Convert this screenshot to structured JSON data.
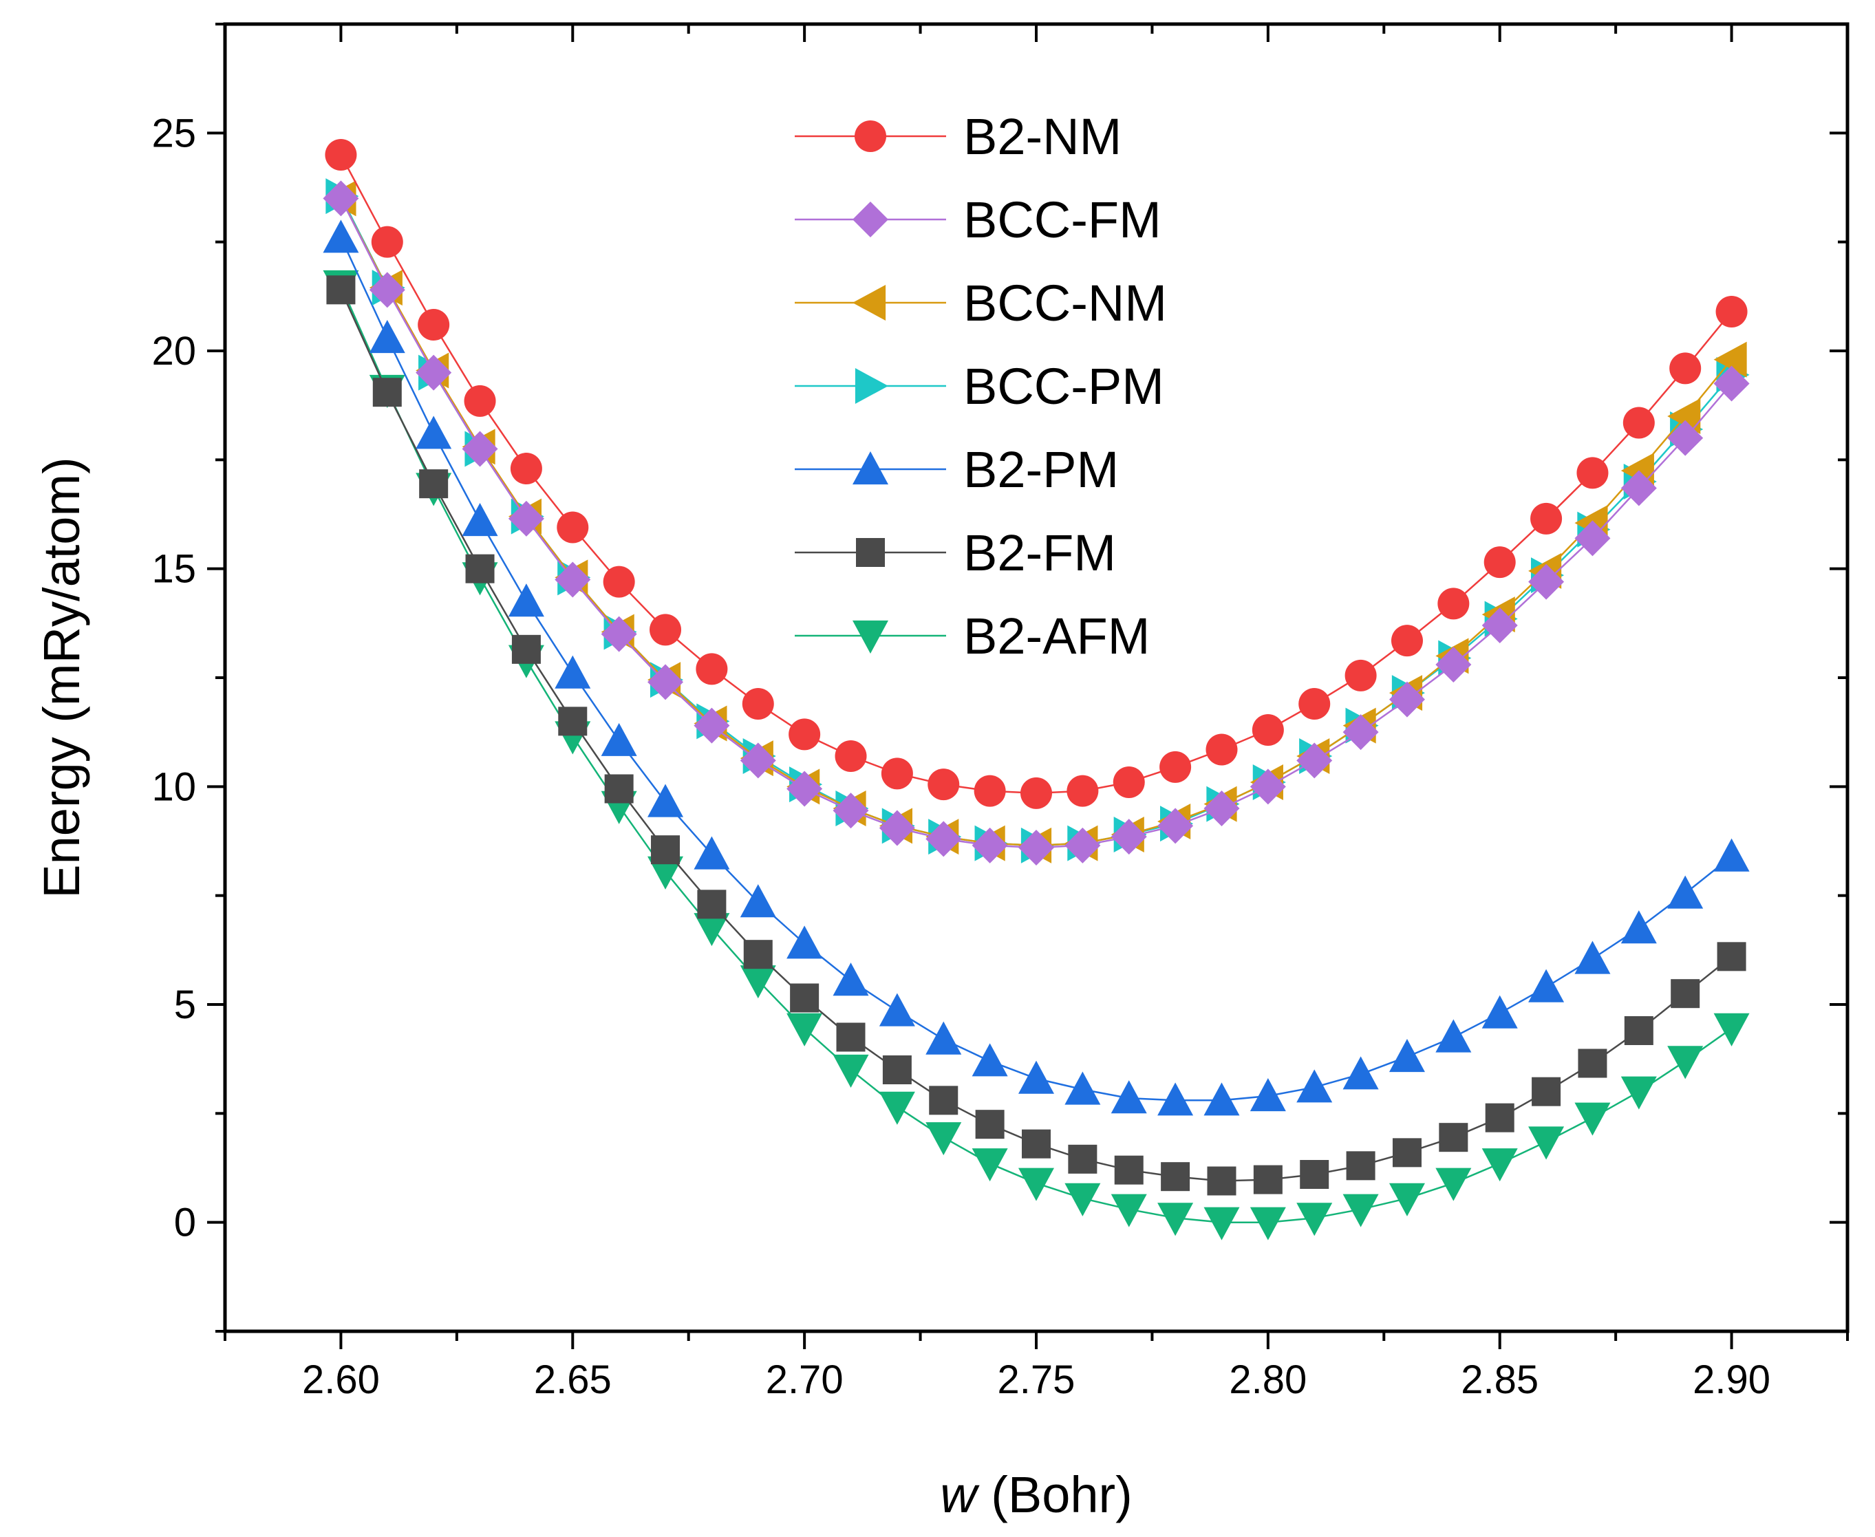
{
  "chart_data": {
    "type": "line",
    "xlabel": {
      "italic": "w",
      "rest": " (Bohr)"
    },
    "ylabel": "Energy (mRy/atom)",
    "xlim": [
      2.575,
      2.925
    ],
    "ylim": [
      -2.5,
      27.5
    ],
    "xticks": [
      "2.60",
      "2.65",
      "2.70",
      "2.75",
      "2.80",
      "2.85",
      "2.90"
    ],
    "yticks": [
      "0",
      "5",
      "10",
      "15",
      "20",
      "25"
    ],
    "grid": false,
    "legend_position": "top-center",
    "x": [
      2.6,
      2.61,
      2.62,
      2.63,
      2.64,
      2.65,
      2.66,
      2.67,
      2.68,
      2.69,
      2.7,
      2.71,
      2.72,
      2.73,
      2.74,
      2.75,
      2.76,
      2.77,
      2.78,
      2.79,
      2.8,
      2.81,
      2.82,
      2.83,
      2.84,
      2.85,
      2.86,
      2.87,
      2.88,
      2.89,
      2.9
    ],
    "series": [
      {
        "name": "B2-NM",
        "color": "#f03c3c",
        "marker": "circle",
        "values": [
          24.5,
          22.5,
          20.6,
          18.85,
          17.3,
          15.95,
          14.7,
          13.6,
          12.7,
          11.9,
          11.2,
          10.7,
          10.3,
          10.05,
          9.9,
          9.85,
          9.9,
          10.1,
          10.45,
          10.85,
          11.3,
          11.9,
          12.55,
          13.35,
          14.2,
          15.15,
          16.15,
          17.2,
          18.35,
          19.6,
          20.9
        ]
      },
      {
        "name": "BCC-FM",
        "color": "#b070d8",
        "marker": "diamond",
        "values": [
          23.5,
          21.4,
          19.5,
          17.75,
          16.15,
          14.75,
          13.5,
          12.4,
          11.4,
          10.6,
          9.95,
          9.45,
          9.05,
          8.8,
          8.65,
          8.6,
          8.65,
          8.85,
          9.1,
          9.5,
          10.0,
          10.6,
          11.25,
          12.0,
          12.8,
          13.7,
          14.7,
          15.7,
          16.85,
          18.0,
          19.25
        ]
      },
      {
        "name": "BCC-NM",
        "color": "#d89a10",
        "marker": "triangle-left",
        "values": [
          23.5,
          21.45,
          19.55,
          17.8,
          16.2,
          14.8,
          13.55,
          12.45,
          11.45,
          10.65,
          10.0,
          9.5,
          9.1,
          8.85,
          8.7,
          8.65,
          8.7,
          8.9,
          9.2,
          9.6,
          10.1,
          10.7,
          11.4,
          12.15,
          13.0,
          13.95,
          14.95,
          16.05,
          17.25,
          18.5,
          19.8
        ]
      },
      {
        "name": "BCC-PM",
        "color": "#1ec8c8",
        "marker": "triangle-right",
        "values": [
          23.55,
          21.45,
          19.5,
          17.75,
          16.2,
          14.8,
          13.55,
          12.45,
          11.5,
          10.7,
          10.05,
          9.5,
          9.1,
          8.85,
          8.7,
          8.65,
          8.7,
          8.9,
          9.15,
          9.6,
          10.1,
          10.7,
          11.4,
          12.15,
          12.95,
          13.85,
          14.85,
          15.9,
          17.0,
          18.2,
          19.45
        ]
      },
      {
        "name": "B2-PM",
        "color": "#1f6fe0",
        "marker": "triangle-up",
        "values": [
          22.6,
          20.3,
          18.1,
          16.1,
          14.25,
          12.6,
          11.05,
          9.65,
          8.45,
          7.35,
          6.4,
          5.55,
          4.85,
          4.2,
          3.7,
          3.3,
          3.05,
          2.85,
          2.8,
          2.8,
          2.9,
          3.1,
          3.4,
          3.8,
          4.25,
          4.8,
          5.4,
          6.05,
          6.75,
          7.55,
          8.4
        ]
      },
      {
        "name": "B2-FM",
        "color": "#4a4a4a",
        "marker": "square",
        "values": [
          21.4,
          19.05,
          16.95,
          15.0,
          13.15,
          11.5,
          9.95,
          8.55,
          7.3,
          6.15,
          5.15,
          4.25,
          3.5,
          2.8,
          2.25,
          1.8,
          1.45,
          1.2,
          1.05,
          0.95,
          0.98,
          1.1,
          1.3,
          1.6,
          1.95,
          2.4,
          3.0,
          3.65,
          4.4,
          5.25,
          6.1
        ]
      },
      {
        "name": "B2-AFM",
        "color": "#14b478",
        "marker": "triangle-down",
        "values": [
          21.5,
          19.1,
          16.85,
          14.8,
          12.9,
          11.15,
          9.55,
          8.05,
          6.75,
          5.55,
          4.45,
          3.5,
          2.65,
          1.95,
          1.35,
          0.9,
          0.55,
          0.3,
          0.1,
          0.0,
          0.0,
          0.1,
          0.3,
          0.55,
          0.9,
          1.35,
          1.85,
          2.4,
          3.0,
          3.7,
          4.45
        ]
      }
    ]
  }
}
